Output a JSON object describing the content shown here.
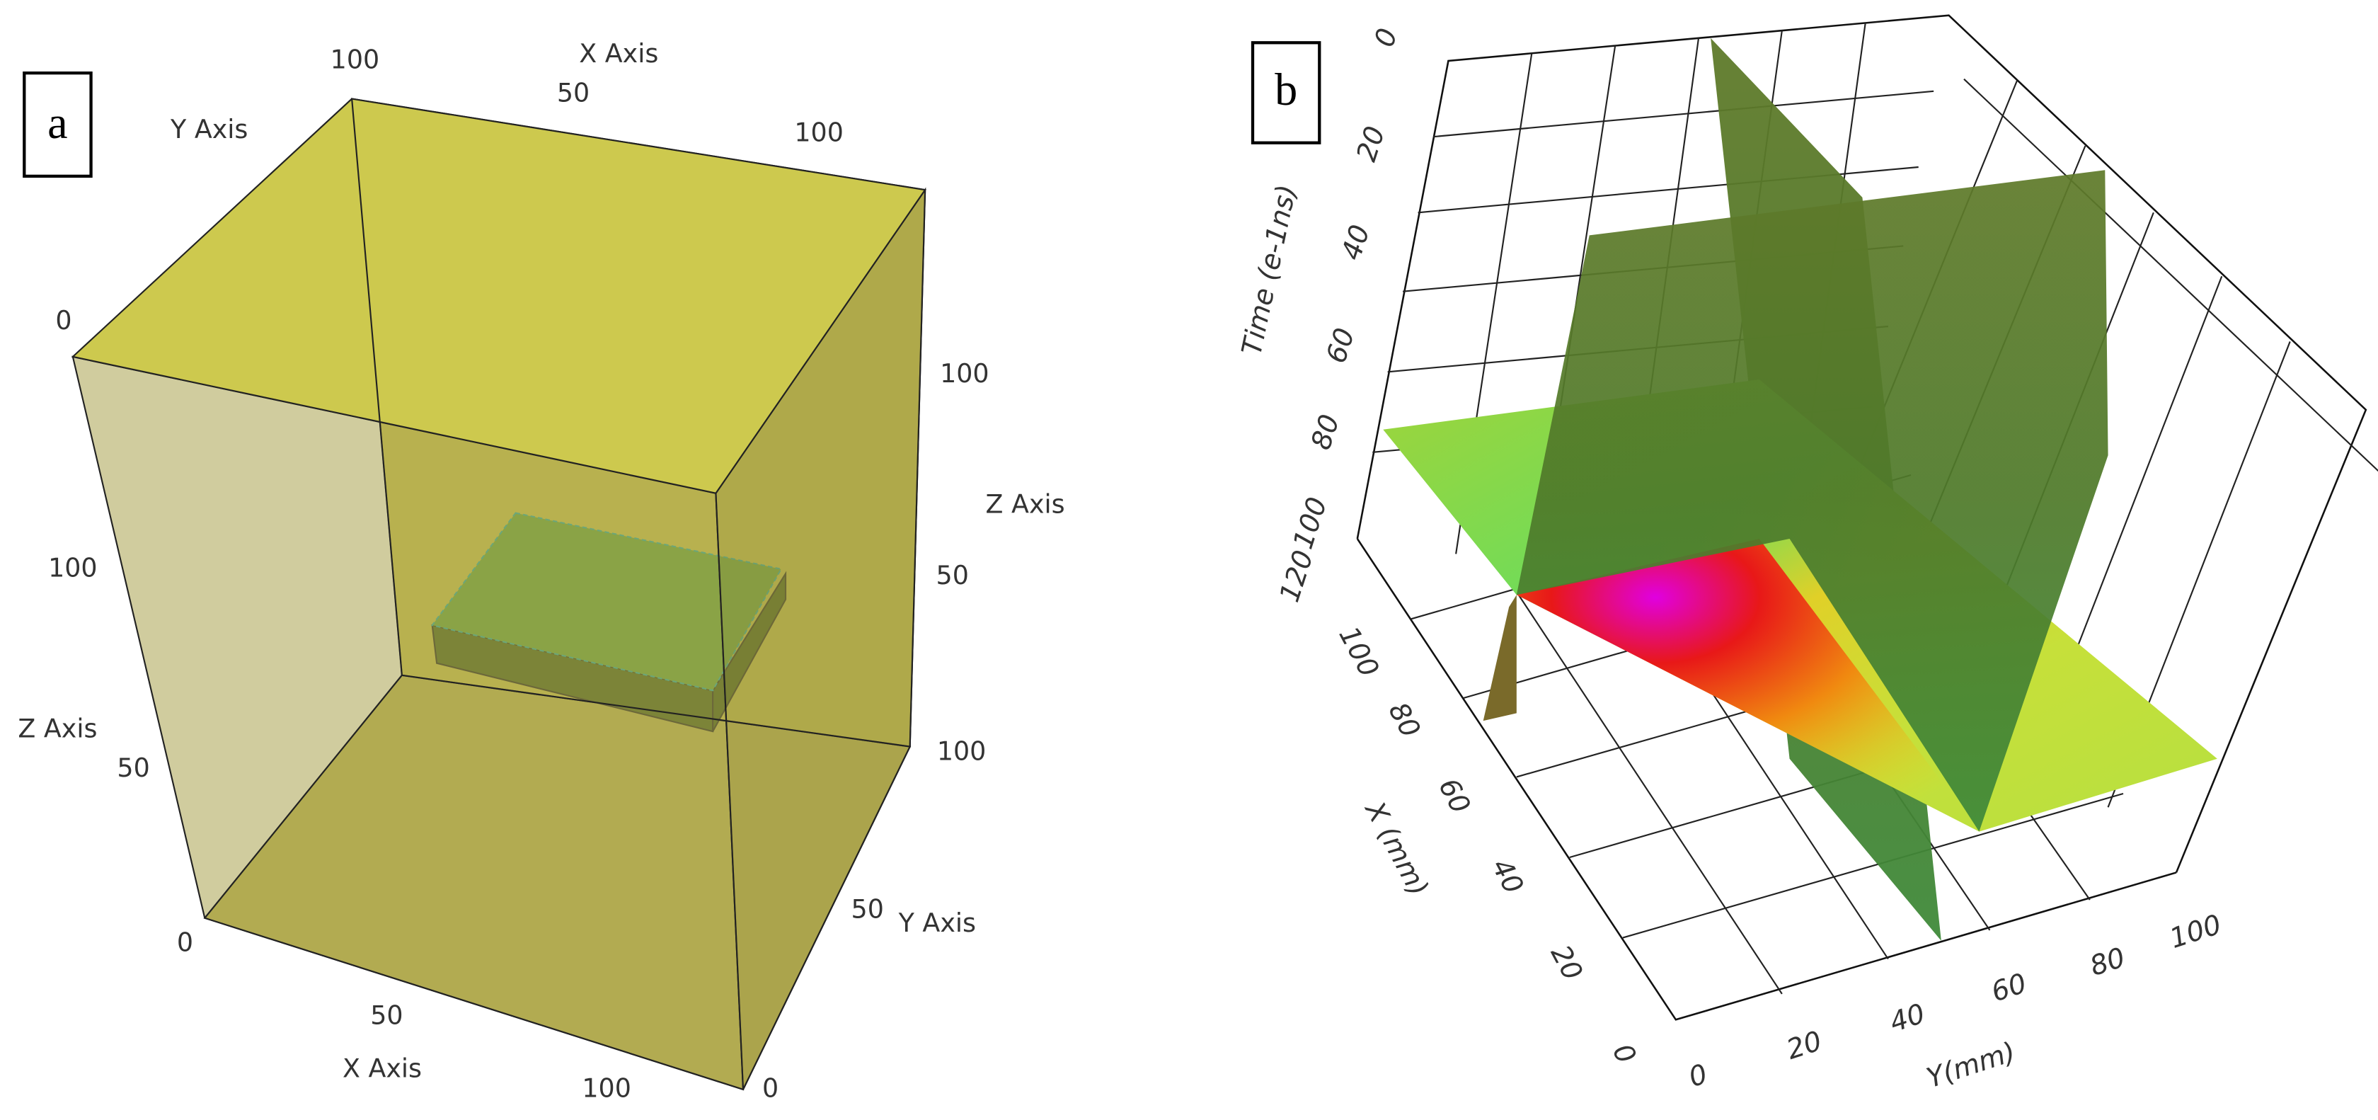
{
  "panel_a": {
    "label": "a",
    "axis_titles": [
      "X Axis",
      "Y Axis",
      "Z Axis",
      "Z Axis",
      "X Axis",
      "Y Axis"
    ],
    "ticks": [
      "100",
      "50",
      "100",
      "0",
      "100",
      "50",
      "0",
      "50",
      "100",
      "100",
      "50",
      "100",
      "50",
      "0"
    ]
  },
  "panel_b": {
    "label": "b",
    "axis_titles": [
      "Time (e-1ns)",
      "X (mm)",
      "Y(mm)"
    ],
    "time_ticks": [
      "0",
      "20",
      "40",
      "60",
      "80",
      "100",
      "120"
    ],
    "x_ticks": [
      "100",
      "80",
      "60",
      "40",
      "20",
      "0"
    ],
    "y_ticks": [
      "0",
      "20",
      "40",
      "60",
      "80",
      "100"
    ]
  }
}
